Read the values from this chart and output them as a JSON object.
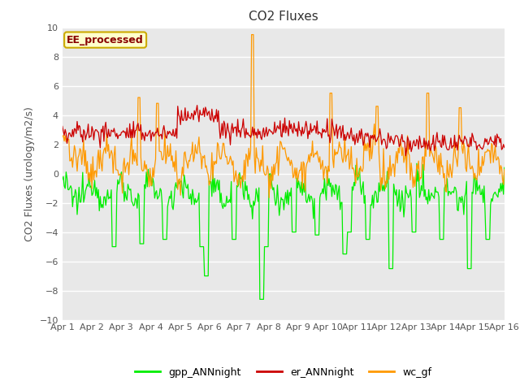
{
  "title": "CO2 Fluxes",
  "ylabel": "CO2 Fluxes (urology/m2/s)",
  "ylim": [
    -10,
    10
  ],
  "yticks": [
    -10,
    -8,
    -6,
    -4,
    -2,
    0,
    2,
    4,
    6,
    8,
    10
  ],
  "x_labels": [
    "Apr 1",
    "Apr 2",
    "Apr 3",
    "Apr 4",
    "Apr 5",
    "Apr 6",
    "Apr 7",
    "Apr 8",
    "Apr 9",
    "Apr 10",
    "Apr 11",
    "Apr 12",
    "Apr 13",
    "Apr 14",
    "Apr 15",
    "Apr 16"
  ],
  "n_points": 480,
  "colors": {
    "gpp_ANNnight": "#00ee00",
    "er_ANNnight": "#cc0000",
    "wc_gf": "#ff9900"
  },
  "legend_label": "EE_processed",
  "legend_box_facecolor": "#ffffcc",
  "legend_box_edgecolor": "#ccaa00",
  "legend_text_color": "#880000",
  "bg_color": "#e8e8e8",
  "grid_color": "#ffffff",
  "title_fontsize": 11,
  "tick_fontsize": 8,
  "ylabel_fontsize": 9
}
